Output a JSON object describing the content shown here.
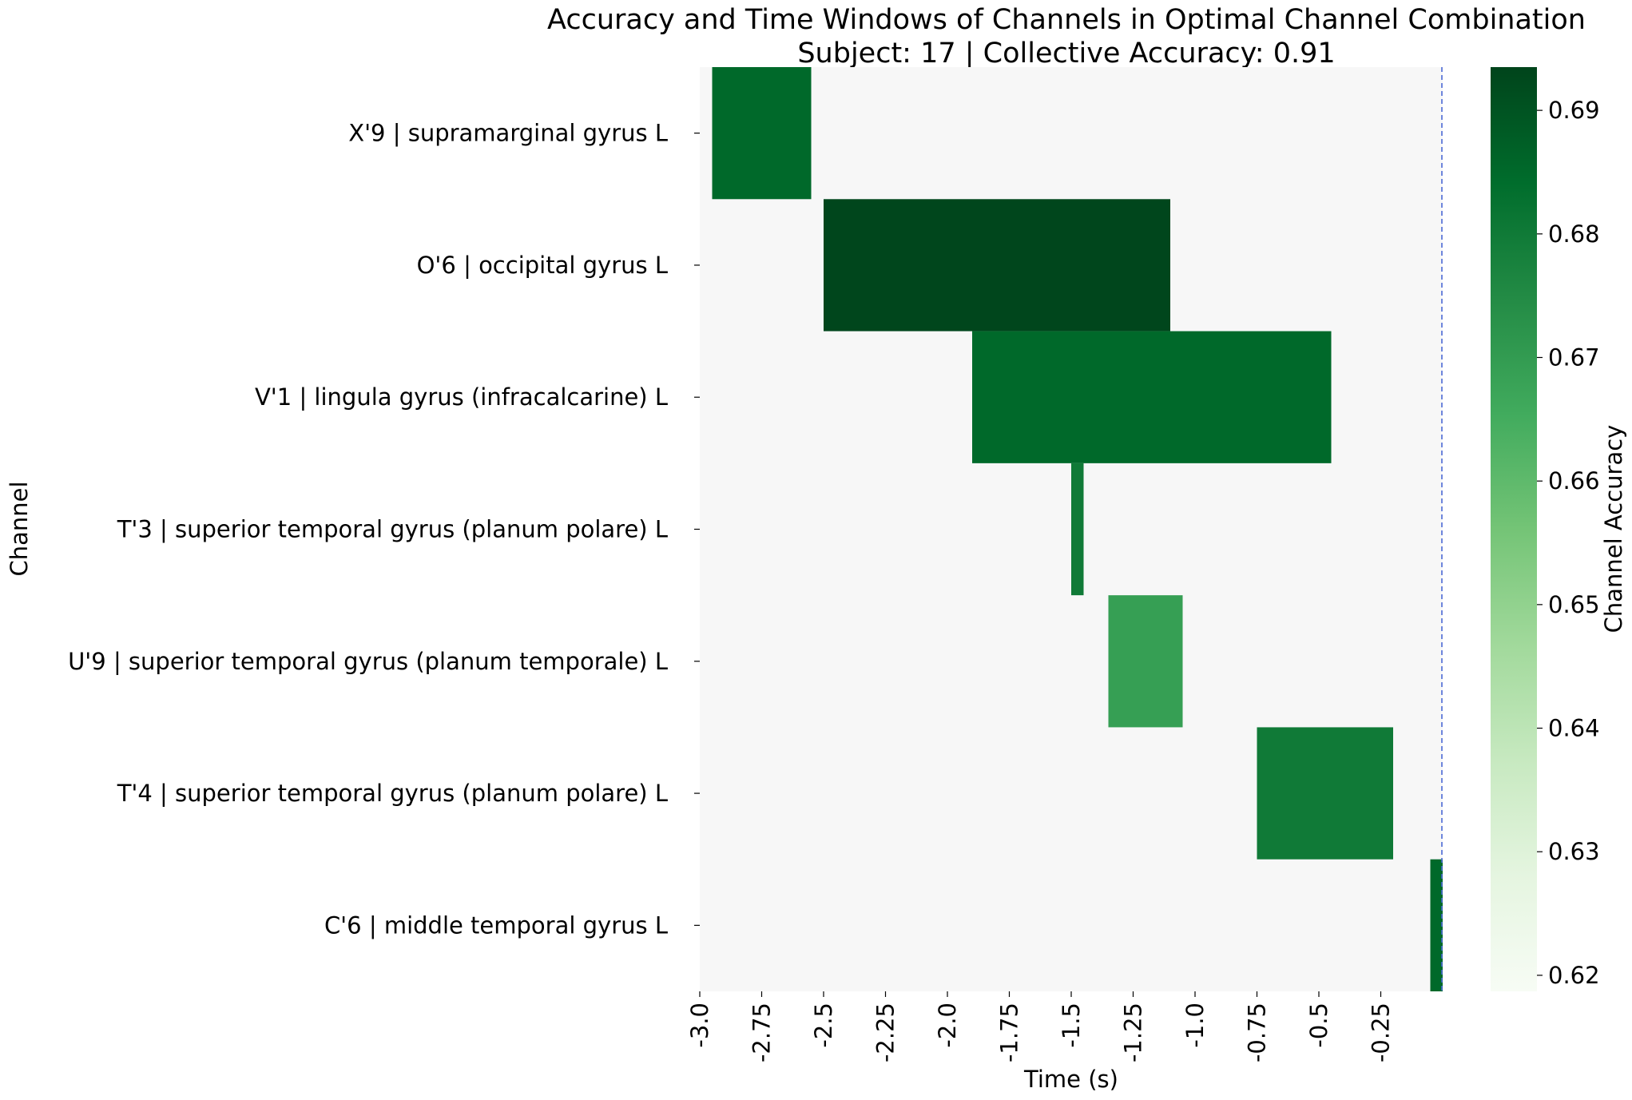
{
  "chart_data": {
    "type": "heatmap",
    "title": "Accuracy and Time Windows of Channels in Optimal Channel Combination",
    "subtitle": "Subject: 17 | Collective Accuracy: 0.91",
    "xlabel": "Time (s)",
    "ylabel": "Channel",
    "colorbar_label": "Channel Accuracy",
    "x_ticks": [
      "-3.0",
      "-2.75",
      "-2.5",
      "-2.25",
      "-2.0",
      "-1.75",
      "-1.5",
      "-1.25",
      "-1.0",
      "-0.75",
      "-0.5",
      "-0.25"
    ],
    "x_tick_values": [
      -3.0,
      -2.75,
      -2.5,
      -2.25,
      -2.0,
      -1.75,
      -1.5,
      -1.25,
      -1.0,
      -0.75,
      -0.5,
      -0.25
    ],
    "xlim": [
      -3.0,
      0.0
    ],
    "colorbar_ticks": [
      "0.62",
      "0.63",
      "0.64",
      "0.65",
      "0.66",
      "0.67",
      "0.68",
      "0.69"
    ],
    "colorbar_tick_values": [
      0.62,
      0.63,
      0.64,
      0.65,
      0.66,
      0.67,
      0.68,
      0.69
    ],
    "colorbar_range": [
      0.6187,
      0.6935
    ],
    "colormap": "Greens",
    "background_color": "#f7f7f7",
    "event_line": {
      "x": 0.0,
      "color": "#4c6ad6",
      "style": "dashed"
    },
    "channels": [
      {
        "label": "X'9 | supramarginal gyrus L",
        "start": -2.95,
        "end": -2.55,
        "accuracy": 0.685
      },
      {
        "label": "O'6 | occipital gyrus L",
        "start": -2.5,
        "end": -1.1,
        "accuracy": 0.693
      },
      {
        "label": "V'1 | lingula gyrus (infracalcarine) L",
        "start": -1.9,
        "end": -0.45,
        "accuracy": 0.685
      },
      {
        "label": "T'3 | superior temporal gyrus (planum polare) L",
        "start": -1.5,
        "end": -1.45,
        "accuracy": 0.68
      },
      {
        "label": "U'9 | superior temporal gyrus (planum temporale) L",
        "start": -1.35,
        "end": -1.05,
        "accuracy": 0.669
      },
      {
        "label": "T'4 | superior temporal gyrus (planum polare) L",
        "start": -0.75,
        "end": -0.2,
        "accuracy": 0.68
      },
      {
        "label": "C'6 | middle temporal gyrus L",
        "start": -0.05,
        "end": 0.0,
        "accuracy": 0.685
      }
    ]
  }
}
